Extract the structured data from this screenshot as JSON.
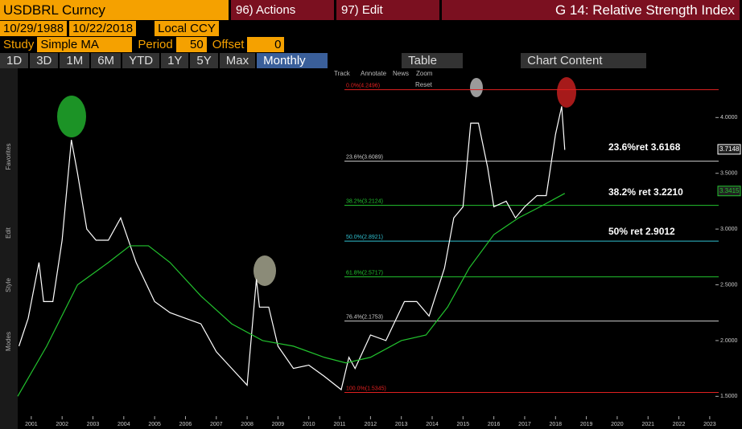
{
  "header": {
    "security": "USDBRL Curncy",
    "actions": "96) Actions",
    "edit": "97) Edit",
    "function": "G 14: Relative Strength Index"
  },
  "range": {
    "start": "10/29/1988",
    "end": "10/22/2018",
    "currency": "Local CCY"
  },
  "study": {
    "label": "Study",
    "name": "Simple MA",
    "period_label": "Period",
    "period": "50",
    "offset_label": "Offset",
    "offset": "0"
  },
  "tabs": [
    "1D",
    "3D",
    "1M",
    "6M",
    "YTD",
    "1Y",
    "5Y",
    "Max"
  ],
  "frequency": "Monthly",
  "table": "Table",
  "content": "Chart Content",
  "tools": [
    "Track",
    "Annotate",
    "News",
    "Zoom",
    "Reset"
  ],
  "sidebar": [
    "Favorites",
    "Edit",
    "Style",
    "Modes"
  ],
  "chart_data": {
    "type": "line",
    "xlim": [
      2001.06,
      2023.79
    ],
    "ylim": [
      1.38,
      4.42
    ],
    "xticks": [
      {
        "value": 2001.5,
        "label": "2001"
      },
      {
        "value": 2002.5,
        "label": "2002"
      },
      {
        "value": 2003.5,
        "label": "2003"
      },
      {
        "value": 2004.5,
        "label": "2004"
      },
      {
        "value": 2005.5,
        "label": "2005"
      },
      {
        "value": 2006.5,
        "label": "2006"
      },
      {
        "value": 2007.5,
        "label": "2007"
      },
      {
        "value": 2008.5,
        "label": "2008"
      },
      {
        "value": 2009.5,
        "label": "2009"
      },
      {
        "value": 2010.5,
        "label": "2010"
      },
      {
        "value": 2011.5,
        "label": "2011"
      },
      {
        "value": 2012.5,
        "label": "2012"
      },
      {
        "value": 2013.5,
        "label": "2013"
      },
      {
        "value": 2014.5,
        "label": "2014"
      },
      {
        "value": 2015.5,
        "label": "2015"
      },
      {
        "value": 2016.5,
        "label": "2016"
      },
      {
        "value": 2017.5,
        "label": "2017"
      },
      {
        "value": 2018.5,
        "label": "2018"
      },
      {
        "value": 2019.5,
        "label": "2019"
      },
      {
        "value": 2020.5,
        "label": "2020"
      },
      {
        "value": 2021.5,
        "label": "2021"
      },
      {
        "value": 2022.5,
        "label": "2022"
      },
      {
        "value": 2023.5,
        "label": "2023"
      }
    ],
    "yticks": [
      {
        "value": 1.5,
        "label": "1.5000"
      },
      {
        "value": 2,
        "label": "2.0000"
      },
      {
        "value": 2.5,
        "label": "2.5000"
      },
      {
        "value": 3,
        "label": "3.0000"
      },
      {
        "value": 3.5,
        "label": "3.5000"
      },
      {
        "value": 4,
        "label": "4.0000"
      }
    ],
    "series": [
      {
        "color": "#ffffff",
        "x": [
          2001.1,
          2001.4,
          2001.75,
          2001.9,
          2002.2,
          2002.5,
          2002.8,
          2003.0,
          2003.3,
          2003.6,
          2004.0,
          2004.4,
          2004.9,
          2005.5,
          2006.0,
          2006.5,
          2007.0,
          2007.5,
          2008.0,
          2008.5,
          2008.8,
          2008.9,
          2009.2,
          2009.5,
          2010.0,
          2010.5,
          2011.0,
          2011.55,
          2011.8,
          2012.0,
          2012.5,
          2013.0,
          2013.6,
          2014.0,
          2014.4,
          2014.9,
          2015.2,
          2015.5,
          2015.75,
          2016.0,
          2016.3,
          2016.5,
          2016.9,
          2017.2,
          2017.5,
          2017.9,
          2018.2,
          2018.5,
          2018.7,
          2018.8
        ],
        "values": [
          1.95,
          2.2,
          2.7,
          2.35,
          2.35,
          2.9,
          3.8,
          3.5,
          3.0,
          2.9,
          2.9,
          3.1,
          2.7,
          2.35,
          2.25,
          2.2,
          2.15,
          1.9,
          1.75,
          1.6,
          2.55,
          2.3,
          2.3,
          1.95,
          1.75,
          1.78,
          1.68,
          1.56,
          1.85,
          1.75,
          2.05,
          2.0,
          2.35,
          2.35,
          2.22,
          2.65,
          3.1,
          3.2,
          3.95,
          3.95,
          3.55,
          3.2,
          3.25,
          3.1,
          3.2,
          3.3,
          3.3,
          3.85,
          4.1,
          3.71
        ]
      },
      {
        "color": "#22c32e",
        "x": [
          2001.06,
          2002.0,
          2003.0,
          2004.0,
          2004.7,
          2005.3,
          2006.0,
          2007.0,
          2008.0,
          2009.0,
          2010.0,
          2011.0,
          2011.7,
          2012.5,
          2013.5,
          2014.3,
          2015.0,
          2015.7,
          2016.5,
          2017.3,
          2018.0,
          2018.8
        ],
        "values": [
          1.5,
          1.95,
          2.5,
          2.7,
          2.85,
          2.85,
          2.7,
          2.4,
          2.15,
          2.0,
          1.95,
          1.85,
          1.8,
          1.85,
          2.0,
          2.05,
          2.3,
          2.65,
          2.95,
          3.1,
          3.2,
          3.32
        ]
      }
    ],
    "levels": [
      {
        "label": "0.0%(4.2496)",
        "value": 4.2496,
        "color": "#e02020"
      },
      {
        "label": "23.6%(3.6089)",
        "value": 3.6089,
        "color": "#cccccc"
      },
      {
        "label": "38.2%(3.2124)",
        "value": 3.2124,
        "color": "#22c32e"
      },
      {
        "label": "50.0%(2.8921)",
        "value": 2.8921,
        "color": "#30c0d0"
      },
      {
        "label": "61.8%(2.5717)",
        "value": 2.5717,
        "color": "#22c32e"
      },
      {
        "label": "76.4%(2.1753)",
        "value": 2.1753,
        "color": "#cccccc"
      },
      {
        "label": "100.0%(1.5345)",
        "value": 1.5345,
        "color": "#e02020"
      }
    ],
    "annotations": [
      "23.6%ret 3.6168",
      "38.2% ret 3.2210",
      "50% ret 2.9012"
    ],
    "last_labels": [
      {
        "text": "3.7148",
        "value": 3.7148,
        "color": "#ffffff"
      },
      {
        "text": "3.3415",
        "value": 3.3415,
        "color": "#22c32e"
      }
    ]
  }
}
